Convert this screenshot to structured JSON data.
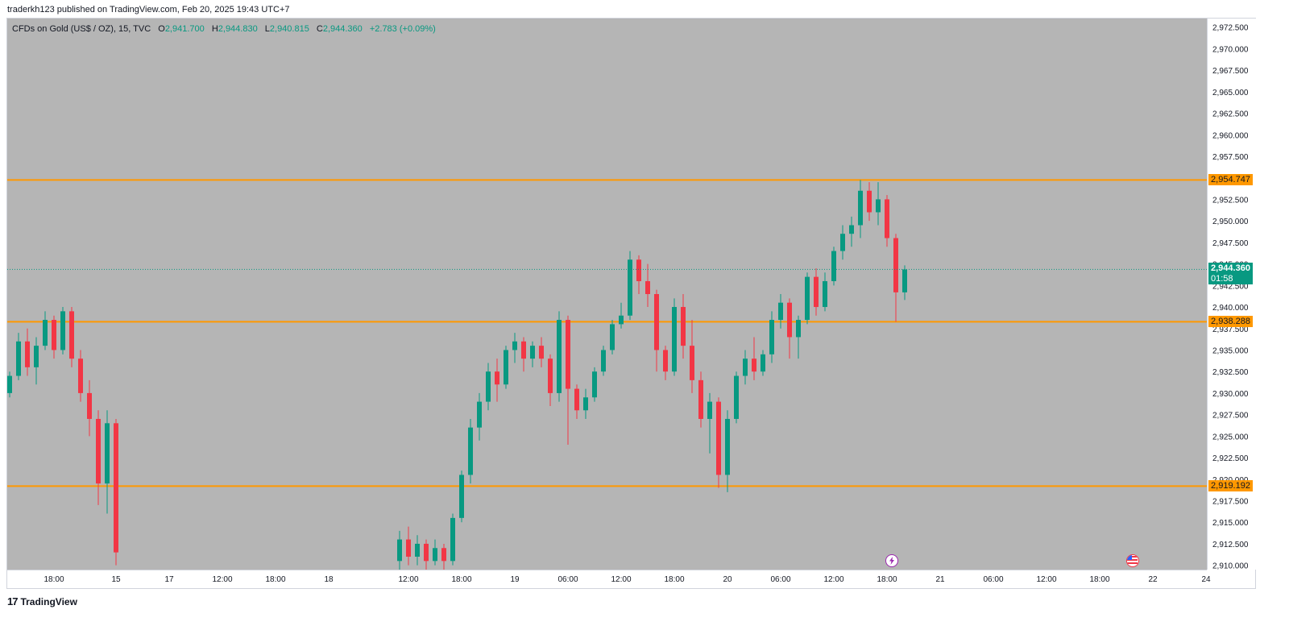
{
  "header": {
    "published": "traderkh123 published on TradingView.com, Feb 20, 2025 19:43 UTC+7"
  },
  "legend": {
    "symbol": "CFDs on Gold (US$ / OZ), 15, TVC",
    "o_label": "O",
    "o_value": "2,941.700",
    "h_label": "H",
    "h_value": "2,944.830",
    "l_label": "L",
    "l_value": "2,940.815",
    "c_label": "C",
    "c_value": "2,944.360",
    "change": "+2.783 (+0.09%)"
  },
  "last_price": {
    "value": "2,944.360",
    "countdown": "01:58",
    "raw": 2944.36
  },
  "brand": {
    "name": "TradingView"
  },
  "icons": {
    "lightning": "lightning-icon",
    "flag": "us-flag-icon"
  },
  "colors": {
    "up": "#089981",
    "down": "#f23645",
    "level": "#ff9800",
    "background": "#b5b5b5",
    "badge": "#089981"
  },
  "chart_data": {
    "type": "candlestick",
    "symbol": "CFDs on Gold (US$ / OZ)",
    "interval": "15",
    "ylim": [
      2909.5,
      2973.5
    ],
    "y_ticks": [
      "2,972.500",
      "2,970.000",
      "2,967.500",
      "2,965.000",
      "2,962.500",
      "2,960.000",
      "2,957.500",
      "2,955.000",
      "2,952.500",
      "2,950.000",
      "2,947.500",
      "2,945.000",
      "2,942.500",
      "2,940.000",
      "2,937.500",
      "2,935.000",
      "2,932.500",
      "2,930.000",
      "2,927.500",
      "2,925.000",
      "2,922.500",
      "2,920.000",
      "2,917.500",
      "2,915.000",
      "2,912.500",
      "2,910.000"
    ],
    "y_tick_values": [
      2972.5,
      2970,
      2967.5,
      2965,
      2962.5,
      2960,
      2957.5,
      2955,
      2952.5,
      2950,
      2947.5,
      2945,
      2942.5,
      2940,
      2937.5,
      2935,
      2932.5,
      2930,
      2927.5,
      2925,
      2922.5,
      2920,
      2917.5,
      2915,
      2912.5,
      2910
    ],
    "x_ticks": [
      "18:00",
      "15",
      "17",
      "12:00",
      "18:00",
      "18",
      "12:00",
      "18:00",
      "19",
      "06:00",
      "12:00",
      "18:00",
      "20",
      "06:00",
      "12:00",
      "18:00",
      "21",
      "06:00",
      "12:00",
      "18:00",
      "22",
      "24"
    ],
    "x_tick_index": [
      5,
      12,
      18,
      24,
      30,
      36,
      45,
      51,
      57,
      63,
      69,
      75,
      81,
      87,
      93,
      99,
      105,
      111,
      117,
      123,
      129,
      135
    ],
    "horizontal_levels": [
      {
        "value": 2954.747,
        "label": "2,954.747"
      },
      {
        "value": 2938.288,
        "label": "2,938.288"
      },
      {
        "value": 2919.192,
        "label": "2,919.192"
      }
    ],
    "candle_segments": [
      {
        "start": 0,
        "candles": [
          [
            2930.0,
            2932.5,
            2929.5,
            2932.0
          ],
          [
            2932.0,
            2937.0,
            2931.5,
            2936.0
          ],
          [
            2936.0,
            2937.5,
            2932.0,
            2933.0
          ],
          [
            2933.0,
            2936.5,
            2931.0,
            2935.5
          ],
          [
            2935.5,
            2939.5,
            2935.0,
            2938.5
          ],
          [
            2938.5,
            2939.0,
            2934.0,
            2935.0
          ],
          [
            2935.0,
            2940.0,
            2934.5,
            2939.5
          ],
          [
            2939.5,
            2940.0,
            2933.0,
            2934.0
          ],
          [
            2934.0,
            2935.0,
            2929.0,
            2930.0
          ],
          [
            2930.0,
            2931.5,
            2925.0,
            2927.0
          ],
          [
            2927.0,
            2928.0,
            2917.0,
            2919.5
          ],
          [
            2919.5,
            2928.0,
            2916.0,
            2926.5
          ],
          [
            2926.5,
            2927.0,
            2910.0,
            2911.5
          ]
        ]
      },
      {
        "start": 44,
        "candles": [
          [
            2910.5,
            2914.0,
            2909.5,
            2913.0
          ],
          [
            2913.0,
            2914.5,
            2910.0,
            2911.0
          ],
          [
            2911.0,
            2913.5,
            2910.0,
            2912.5
          ],
          [
            2912.5,
            2913.0,
            2909.5,
            2910.5
          ],
          [
            2910.5,
            2913.0,
            2910.0,
            2912.0
          ],
          [
            2912.0,
            2912.5,
            2909.5,
            2910.5
          ],
          [
            2910.5,
            2916.0,
            2910.0,
            2915.5
          ],
          [
            2915.5,
            2921.0,
            2915.0,
            2920.5
          ],
          [
            2920.5,
            2927.0,
            2919.5,
            2926.0
          ],
          [
            2926.0,
            2930.0,
            2924.5,
            2929.0
          ],
          [
            2929.0,
            2933.5,
            2928.0,
            2932.5
          ],
          [
            2932.5,
            2934.0,
            2929.0,
            2931.0
          ],
          [
            2931.0,
            2935.5,
            2930.5,
            2935.0
          ],
          [
            2935.0,
            2937.0,
            2933.5,
            2936.0
          ],
          [
            2936.0,
            2936.5,
            2932.5,
            2934.0
          ],
          [
            2934.0,
            2936.0,
            2933.0,
            2935.5
          ],
          [
            2935.5,
            2936.5,
            2933.0,
            2934.0
          ],
          [
            2934.0,
            2934.5,
            2928.5,
            2930.0
          ],
          [
            2930.0,
            2939.5,
            2929.0,
            2938.5
          ],
          [
            2938.5,
            2939.0,
            2924.0,
            2930.5
          ],
          [
            2930.5,
            2931.0,
            2927.0,
            2928.0
          ],
          [
            2928.0,
            2930.5,
            2927.0,
            2929.5
          ],
          [
            2929.5,
            2933.0,
            2929.0,
            2932.5
          ],
          [
            2932.5,
            2935.5,
            2932.0,
            2935.0
          ],
          [
            2935.0,
            2938.5,
            2934.5,
            2938.0
          ],
          [
            2938.0,
            2940.5,
            2937.5,
            2939.0
          ],
          [
            2939.0,
            2946.5,
            2938.5,
            2945.5
          ],
          [
            2945.5,
            2946.0,
            2941.5,
            2943.0
          ],
          [
            2943.0,
            2945.0,
            2940.0,
            2941.5
          ],
          [
            2941.5,
            2942.0,
            2932.5,
            2935.0
          ],
          [
            2935.0,
            2935.5,
            2931.5,
            2932.5
          ],
          [
            2932.5,
            2941.0,
            2932.0,
            2940.0
          ],
          [
            2940.0,
            2941.5,
            2934.0,
            2935.5
          ],
          [
            2935.5,
            2938.5,
            2930.0,
            2931.5
          ],
          [
            2931.5,
            2932.5,
            2926.0,
            2927.0
          ],
          [
            2927.0,
            2930.0,
            2923.0,
            2929.0
          ],
          [
            2929.0,
            2929.5,
            2919.0,
            2920.5
          ],
          [
            2920.5,
            2928.0,
            2918.5,
            2927.0
          ],
          [
            2927.0,
            2932.5,
            2926.5,
            2932.0
          ],
          [
            2932.0,
            2935.0,
            2931.0,
            2934.0
          ],
          [
            2934.0,
            2936.5,
            2931.5,
            2932.5
          ],
          [
            2932.5,
            2935.0,
            2932.0,
            2934.5
          ],
          [
            2934.5,
            2939.5,
            2933.5,
            2938.5
          ],
          [
            2938.5,
            2941.5,
            2937.5,
            2940.5
          ],
          [
            2940.5,
            2941.0,
            2934.0,
            2936.5
          ],
          [
            2936.5,
            2939.0,
            2934.0,
            2938.5
          ],
          [
            2938.5,
            2944.0,
            2938.0,
            2943.5
          ],
          [
            2943.5,
            2944.5,
            2939.0,
            2940.0
          ],
          [
            2940.0,
            2944.0,
            2939.5,
            2943.0
          ],
          [
            2943.0,
            2947.0,
            2942.5,
            2946.5
          ],
          [
            2946.5,
            2949.5,
            2945.5,
            2948.5
          ],
          [
            2948.5,
            2950.5,
            2947.0,
            2949.5
          ],
          [
            2949.5,
            2954.747,
            2948.0,
            2953.5
          ],
          [
            2953.5,
            2954.5,
            2950.0,
            2951.0
          ],
          [
            2951.0,
            2954.5,
            2949.5,
            2952.5
          ],
          [
            2952.5,
            2953.0,
            2947.0,
            2948.0
          ],
          [
            2948.0,
            2948.5,
            2938.288,
            2941.7
          ],
          [
            2941.7,
            2944.83,
            2940.815,
            2944.36
          ]
        ]
      }
    ]
  }
}
